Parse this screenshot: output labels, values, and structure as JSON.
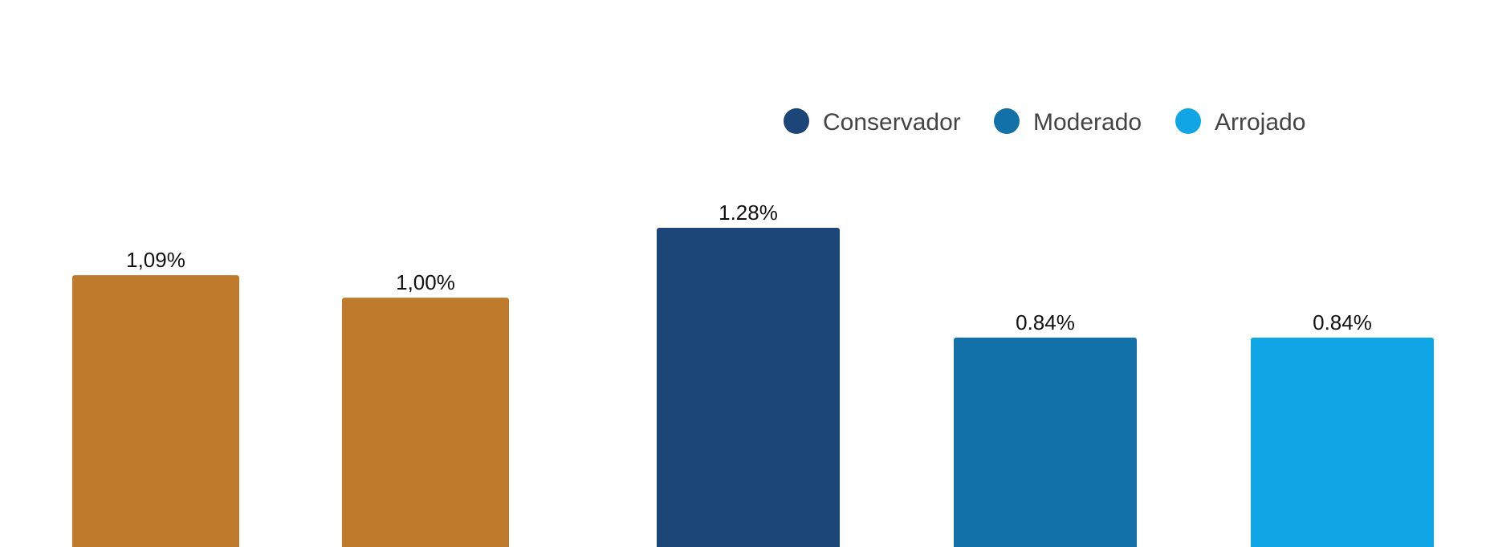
{
  "chart_data": {
    "type": "bar",
    "title": "",
    "xlabel": "",
    "ylabel": "",
    "ylim": [
      0,
      1.28
    ],
    "grid": false,
    "legend_position": "top-right",
    "legend": [
      {
        "label": "Conservador",
        "color": "#1b4677"
      },
      {
        "label": "Moderado",
        "color": "#1271a9"
      },
      {
        "label": "Arrojado",
        "color": "#10a6e6"
      }
    ],
    "bars": [
      {
        "value": 1.09,
        "label": "1,09%",
        "color": "#c07a2c"
      },
      {
        "value": 1.0,
        "label": "1,00%",
        "color": "#c07a2c"
      },
      {
        "value": 1.28,
        "label": "1.28%",
        "color": "#1b4677"
      },
      {
        "value": 0.84,
        "label": "0.84%",
        "color": "#1271a9"
      },
      {
        "value": 0.84,
        "label": "0.84%",
        "color": "#10a6e6"
      }
    ]
  }
}
